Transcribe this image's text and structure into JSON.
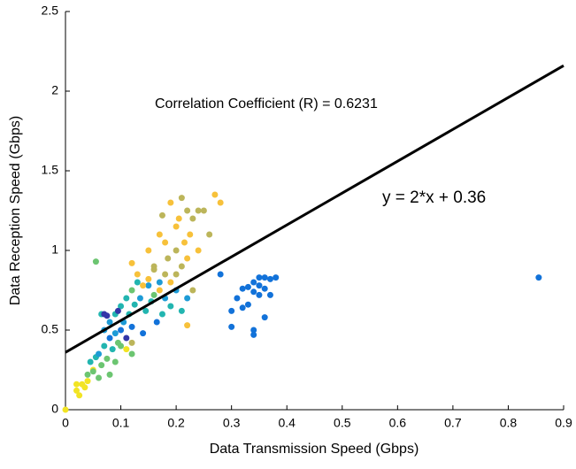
{
  "chart_data": {
    "type": "scatter",
    "xlabel": "Data Transmission Speed (Gbps)",
    "ylabel": "Data Reception Speed (Gbps)",
    "xlim": [
      0,
      0.9
    ],
    "ylim": [
      0,
      2.5
    ],
    "xticks": [
      0,
      0.1,
      0.2,
      0.3,
      0.4,
      0.5,
      0.6,
      0.7,
      0.8,
      0.9
    ],
    "yticks": [
      0,
      0.5,
      1,
      1.5,
      2,
      2.5
    ],
    "fit_line": {
      "slope": 2,
      "intercept": 0.36,
      "color": "#000000"
    },
    "annotations": [
      "Correlation Coefficient (R) = 0.6231",
      "y = 2*x + 0.36"
    ],
    "series": [
      {
        "color": "#1272d9",
        "x": [
          0.28,
          0.3,
          0.3,
          0.31,
          0.32,
          0.32,
          0.33,
          0.34,
          0.34,
          0.34,
          0.34,
          0.35,
          0.35,
          0.35,
          0.36,
          0.36,
          0.37,
          0.37,
          0.38,
          0.36,
          0.33,
          0.855,
          0.08,
          0.1,
          0.12,
          0.14,
          0.165
        ],
        "y": [
          0.85,
          0.52,
          0.62,
          0.7,
          0.76,
          0.64,
          0.77,
          0.8,
          0.74,
          0.5,
          0.47,
          0.83,
          0.78,
          0.72,
          0.83,
          0.58,
          0.82,
          0.72,
          0.83,
          0.76,
          0.66,
          0.83,
          0.45,
          0.5,
          0.52,
          0.48,
          0.55
        ]
      },
      {
        "color": "#f2e423",
        "x": [
          0,
          0.02,
          0.025,
          0.03,
          0.035,
          0.04,
          0.05,
          0.02,
          0.11
        ],
        "y": [
          0,
          0.12,
          0.09,
          0.16,
          0.14,
          0.18,
          0.25,
          0.16,
          0.38
        ]
      },
      {
        "color": "#22b5b0",
        "x": [
          0.045,
          0.055,
          0.07,
          0.085,
          0.09,
          0.1,
          0.11,
          0.115,
          0.125,
          0.13,
          0.145,
          0.155,
          0.175,
          0.19,
          0.21,
          0.065
        ],
        "y": [
          0.3,
          0.33,
          0.4,
          0.38,
          0.6,
          0.65,
          0.7,
          0.6,
          0.66,
          0.8,
          0.62,
          0.68,
          0.6,
          0.65,
          0.62,
          0.6
        ]
      },
      {
        "color": "#6cc571",
        "x": [
          0.04,
          0.05,
          0.06,
          0.065,
          0.075,
          0.095,
          0.1,
          0.12,
          0.09,
          0.08,
          0.055,
          0.12,
          0.16
        ],
        "y": [
          0.22,
          0.24,
          0.2,
          0.28,
          0.32,
          0.42,
          0.4,
          0.35,
          0.3,
          0.22,
          0.93,
          0.75,
          0.72
        ]
      },
      {
        "color": "#1d9bd6",
        "x": [
          0.06,
          0.07,
          0.08,
          0.09,
          0.105,
          0.135,
          0.15,
          0.17,
          0.18,
          0.2,
          0.22
        ],
        "y": [
          0.35,
          0.5,
          0.55,
          0.48,
          0.55,
          0.7,
          0.78,
          0.8,
          0.7,
          0.75,
          0.7
        ]
      },
      {
        "color": "#3336a8",
        "x": [
          0.07,
          0.075,
          0.095,
          0.11
        ],
        "y": [
          0.6,
          0.59,
          0.62,
          0.45
        ]
      },
      {
        "color": "#f7c13a",
        "x": [
          0.15,
          0.17,
          0.18,
          0.19,
          0.2,
          0.205,
          0.215,
          0.22,
          0.225,
          0.24,
          0.27,
          0.28,
          0.13,
          0.15,
          0.17,
          0.19,
          0.22,
          0.12,
          0.14
        ],
        "y": [
          1.0,
          1.1,
          1.05,
          1.3,
          1.15,
          1.2,
          1.05,
          0.95,
          1.1,
          1.0,
          1.35,
          1.3,
          0.85,
          0.82,
          0.75,
          0.8,
          0.53,
          0.92,
          0.78
        ]
      },
      {
        "color": "#bcb55a",
        "x": [
          0.16,
          0.175,
          0.185,
          0.2,
          0.21,
          0.21,
          0.22,
          0.23,
          0.24,
          0.25,
          0.26,
          0.16,
          0.18,
          0.2,
          0.23,
          0.12
        ],
        "y": [
          0.9,
          1.22,
          0.95,
          1.0,
          1.33,
          0.9,
          1.25,
          1.2,
          1.25,
          1.25,
          1.1,
          0.88,
          0.85,
          0.85,
          0.75,
          0.42
        ]
      }
    ]
  }
}
